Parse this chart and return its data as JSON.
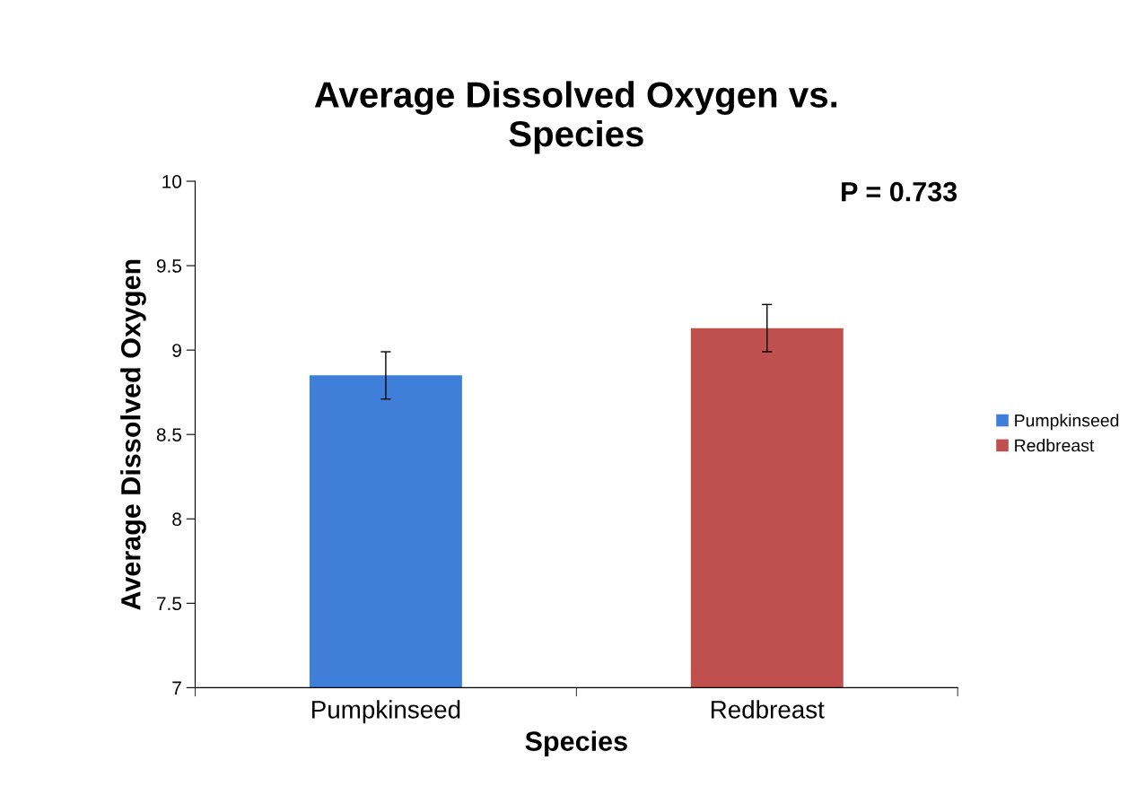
{
  "chart_data": {
    "type": "bar",
    "title": "Average Dissolved Oxygen vs.\nSpecies",
    "xlabel": "Species",
    "ylabel": "Average Dissolved Oxygen",
    "categories": [
      "Pumpkinseed",
      "Redbreast"
    ],
    "series": [
      {
        "name": "Pumpkinseed",
        "color": "#3f7fd9",
        "values": [
          8.85,
          null
        ],
        "errors": [
          0.14,
          null
        ]
      },
      {
        "name": "Redbreast",
        "color": "#c0504d",
        "values": [
          null,
          9.13
        ],
        "errors": [
          null,
          0.14
        ]
      }
    ],
    "ylim": [
      7,
      10
    ],
    "yticks": [
      7,
      7.5,
      8,
      8.5,
      9,
      9.5,
      10
    ],
    "grid": false,
    "legend": "right",
    "annotations": [
      "P = 0.733"
    ]
  }
}
